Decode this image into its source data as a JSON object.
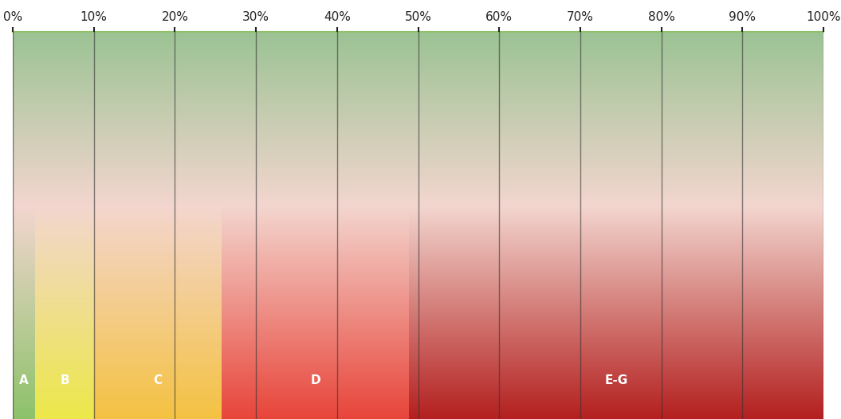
{
  "chart_data": {
    "type": "bar",
    "orientation": "horizontal",
    "stacked": true,
    "categories": [
      null
    ],
    "series": [
      {
        "name": "A",
        "color": "#8dc26a",
        "values": [
          2.8
        ]
      },
      {
        "name": "B",
        "color": "#ece84a",
        "values": [
          7.2
        ]
      },
      {
        "name": "C",
        "color": "#f5c242",
        "values": [
          15.8
        ]
      },
      {
        "name": "D",
        "color": "#e8453a",
        "values": [
          23.1
        ]
      },
      {
        "name": "E-G",
        "color": "#b3201f",
        "values": [
          51.1
        ]
      }
    ],
    "xlim": [
      0,
      100
    ],
    "xticks": [
      {
        "value": 0,
        "label": "0%"
      },
      {
        "value": 10,
        "label": "10%"
      },
      {
        "value": 20,
        "label": "20%"
      },
      {
        "value": 30,
        "label": "30%"
      },
      {
        "value": 40,
        "label": "40%"
      },
      {
        "value": 50,
        "label": "50%"
      },
      {
        "value": 60,
        "label": "60%"
      },
      {
        "value": 70,
        "label": "70%"
      },
      {
        "value": 80,
        "label": "80%"
      },
      {
        "value": 90,
        "label": "90%"
      },
      {
        "value": 100,
        "label": "100%"
      }
    ],
    "grid": true,
    "tick_labels": "x"
  }
}
